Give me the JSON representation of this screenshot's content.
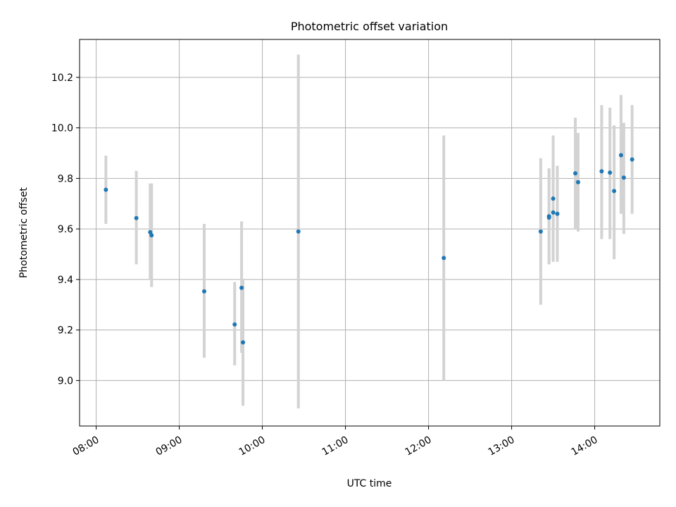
{
  "chart_data": {
    "type": "scatter",
    "title": "Photometric offset variation",
    "xlabel": "UTC time",
    "ylabel": "Photometric offset",
    "x_ticks": [
      "08:00",
      "09:00",
      "10:00",
      "11:00",
      "12:00",
      "13:00",
      "14:00"
    ],
    "y_ticks": [
      "9.0",
      "9.2",
      "9.4",
      "9.6",
      "9.8",
      "10.0",
      "10.2"
    ],
    "x_unit": "UTC time",
    "xlim": [
      "07:48",
      "14:47"
    ],
    "ylim": [
      8.82,
      10.35
    ],
    "grid": true,
    "legend": null,
    "colors": {
      "points": "#1f77b4",
      "errorbars": "#d3d3d3",
      "grid": "#b0b0b0"
    },
    "points": [
      {
        "x": "08:07",
        "y": 9.755,
        "y_low": 9.62,
        "y_high": 9.89
      },
      {
        "x": "08:29",
        "y": 9.643,
        "y_low": 9.46,
        "y_high": 9.83
      },
      {
        "x": "08:39",
        "y": 9.587,
        "y_low": 9.4,
        "y_high": 9.78
      },
      {
        "x": "08:40",
        "y": 9.575,
        "y_low": 9.37,
        "y_high": 9.78
      },
      {
        "x": "09:18",
        "y": 9.353,
        "y_low": 9.09,
        "y_high": 9.62
      },
      {
        "x": "09:40",
        "y": 9.222,
        "y_low": 9.06,
        "y_high": 9.39
      },
      {
        "x": "09:45",
        "y": 9.367,
        "y_low": 9.11,
        "y_high": 9.63
      },
      {
        "x": "09:46",
        "y": 9.151,
        "y_low": 8.9,
        "y_high": 9.4
      },
      {
        "x": "10:26",
        "y": 9.59,
        "y_low": 8.89,
        "y_high": 10.29
      },
      {
        "x": "12:11",
        "y": 9.485,
        "y_low": 9.0,
        "y_high": 9.97
      },
      {
        "x": "13:21",
        "y": 9.59,
        "y_low": 9.3,
        "y_high": 9.88
      },
      {
        "x": "13:27",
        "y": 9.65,
        "y_low": 9.46,
        "y_high": 9.84
      },
      {
        "x": "13:27",
        "y": 9.645,
        "y_low": 9.46,
        "y_high": 9.84
      },
      {
        "x": "13:30",
        "y": 9.72,
        "y_low": 9.47,
        "y_high": 9.97
      },
      {
        "x": "13:30",
        "y": 9.665,
        "y_low": 9.47,
        "y_high": 9.86
      },
      {
        "x": "13:33",
        "y": 9.66,
        "y_low": 9.47,
        "y_high": 9.85
      },
      {
        "x": "13:46",
        "y": 9.82,
        "y_low": 9.6,
        "y_high": 10.04
      },
      {
        "x": "13:48",
        "y": 9.785,
        "y_low": 9.59,
        "y_high": 9.98
      },
      {
        "x": "14:05",
        "y": 9.828,
        "y_low": 9.56,
        "y_high": 10.09
      },
      {
        "x": "14:11",
        "y": 9.823,
        "y_low": 9.56,
        "y_high": 10.08
      },
      {
        "x": "14:14",
        "y": 9.75,
        "y_low": 9.48,
        "y_high": 10.01
      },
      {
        "x": "14:19",
        "y": 9.892,
        "y_low": 9.66,
        "y_high": 10.13
      },
      {
        "x": "14:21",
        "y": 9.803,
        "y_low": 9.58,
        "y_high": 10.02
      },
      {
        "x": "14:27",
        "y": 9.875,
        "y_low": 9.66,
        "y_high": 10.09
      }
    ]
  }
}
